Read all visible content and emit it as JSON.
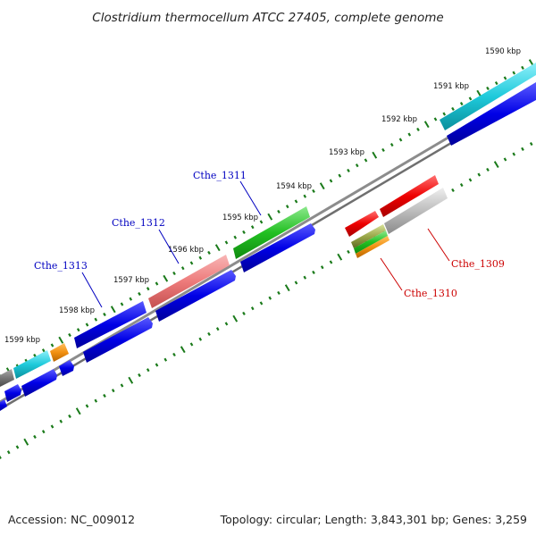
{
  "title": "Clostridium thermocellum ATCC 27405, complete genome",
  "accession": "Accession: NC_009012",
  "summary": "Topology: circular; Length: 3,843,301 bp; Genes: 3,259",
  "kbp_labels": [
    "1590 kbp",
    "1591 kbp",
    "1592 kbp",
    "1593 kbp",
    "1594 kbp",
    "1595 kbp",
    "1596 kbp",
    "1597 kbp",
    "1598 kbp",
    "1599 kbp"
  ],
  "gene_labels": {
    "cthe_1311": "Cthe_1311",
    "cthe_1312": "Cthe_1312",
    "cthe_1313": "Cthe_1313",
    "cthe_1309": "Cthe_1309",
    "cthe_1310": "Cthe_1310"
  },
  "colors": {
    "backbone": "#8c8c8c",
    "tick": "#1a7a1a",
    "cds_blue": "#0000e6",
    "cyan": "#1ecadb",
    "green": "#22c022",
    "pink": "#ee7b7b",
    "red": "#ee0000",
    "gray": "#bdbdbd",
    "orange": "#f29010",
    "dark_gray": "#777777",
    "label_blue": "#0000c0",
    "label_red": "#cc0000"
  }
}
